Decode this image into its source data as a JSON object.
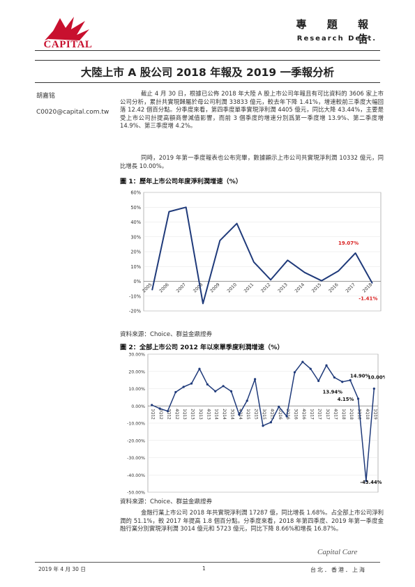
{
  "header": {
    "logo_text": "CAPITAL",
    "report_type": "專 題 報 告",
    "dept": "Research Dept."
  },
  "title": "大陸上市 A 股公司 2018 年報及 2019 一季報分析",
  "author": {
    "name": "胡嘉铭",
    "email": "C0020@capital.com.tw"
  },
  "paragraphs": [
    "截止 4 月 30 日，根據已公佈 2018 年大陸 A 股上市公司年報且有可比資料的 3606 家上市公司分析，累計共實現歸屬於母公司利潤 33833 億元，較去年下降 1.41%，增速較前三季度大幅回落 12.42 個百分點。分季度來看，第四季度單季實現淨利潤 4405 億元，同比大降 43.44%，主要是受上市公司計提高額商譽減值影響，而前 3 個季度的增速分別爲第一季度增 13.9%、第二季度增 14.9%、第三季度增 4.2%。",
    "同時，2019 年第一季度報表也公布完畢，數據顯示上市公司共實現淨利潤 10332 億元，同比增長 10.00%。",
    "金融行業上市公司 2018 年共實現淨利潤 17287 億，同比增長 1.68%。占全部上市公司淨利潤的 51.1%，較 2017 年提高 1.8 個百分點。分季度來看，2018 年第四季度、2019 年第一季度金融行業分別實現淨利潤 3014 億元和 5723 億元，同比下降 8.66%和增長 16.87%。"
  ],
  "figure1": {
    "title": "圖 1：歷年上市公司年度淨利潤增速（%）",
    "source": "資料來源：Choice、群益金鼎證券"
  },
  "figure2": {
    "title": "圖 2：全部上市公司 2012 年以來單季度利潤增速（%）",
    "source": "資料來源：Choice、群益金鼎證券"
  },
  "footer": {
    "date": "2019 年 4 月 30 日",
    "page": "1",
    "brand": "Capital Care",
    "cities": "台北．香港．上海"
  },
  "chart_data": [
    {
      "type": "line",
      "title": "圖 1：歷年上市公司年度淨利潤增速（%）",
      "x": [
        "2005",
        "2006",
        "2007",
        "2008",
        "2009",
        "2010",
        "2011",
        "2012",
        "2013",
        "2014",
        "2015",
        "2016",
        "2017",
        "2018"
      ],
      "values": [
        -6,
        47,
        50,
        -15,
        27.5,
        39,
        13,
        1,
        14.2,
        6,
        0.4,
        7,
        19.07,
        -1.41
      ],
      "yticks": [
        -20,
        -10,
        0,
        10,
        20,
        30,
        40,
        50,
        60
      ],
      "ytick_labels": [
        "-20%",
        "-10%",
        "0%",
        "10%",
        "20%",
        "30%",
        "40%",
        "50%",
        "60%"
      ],
      "ylim": [
        -20,
        60
      ],
      "color": "#1f3a7a",
      "annotations": [
        {
          "index": 12,
          "label": "19.07%"
        },
        {
          "index": 13,
          "label": "-1.41%"
        }
      ],
      "annotation_color": "#d81e1e"
    },
    {
      "type": "line",
      "title": "圖 2：全部上市公司 2012 年以來單季度利潤增速（%）",
      "x": [
        "1Q12",
        "2Q12",
        "3Q12",
        "4Q12",
        "1Q13",
        "2Q13",
        "3Q13",
        "4Q13",
        "1Q14",
        "2Q14",
        "3Q14",
        "4Q14",
        "1Q15",
        "2Q15",
        "3Q15",
        "4Q15",
        "1Q16",
        "2Q16",
        "3Q16",
        "4Q16",
        "1Q17",
        "2Q17",
        "3Q17",
        "4Q17",
        "1Q18",
        "2Q18",
        "3Q18",
        "4Q18",
        "1Q19"
      ],
      "values": [
        0.5,
        -1.5,
        -3,
        8,
        11,
        13,
        21.5,
        12.5,
        8.5,
        11.5,
        8.5,
        -5,
        3,
        15.5,
        -11.5,
        -9.5,
        -0.5,
        -6,
        19.5,
        25.5,
        21.5,
        14.5,
        23.5,
        16.5,
        13.94,
        14.9,
        4.15,
        -43.44,
        10.0
      ],
      "yticks": [
        -50,
        -40,
        -30,
        -20,
        -10,
        0,
        10,
        20,
        30
      ],
      "ytick_labels": [
        "-50.00%",
        "-40.00%",
        "-30.00%",
        "-20.00%",
        "-10.00%",
        "0.00%",
        "10.00%",
        "20.00%",
        "30.00%"
      ],
      "ylim": [
        -50,
        30
      ],
      "color": "#1f3a7a",
      "annotations": [
        {
          "index": 24,
          "label": "13.94%"
        },
        {
          "index": 25,
          "label": "14.90%"
        },
        {
          "index": 26,
          "label": "4.15%"
        },
        {
          "index": 27,
          "label": "-43.44%"
        },
        {
          "index": 28,
          "label": "10.00%"
        }
      ],
      "annotation_color": "#111111"
    }
  ]
}
